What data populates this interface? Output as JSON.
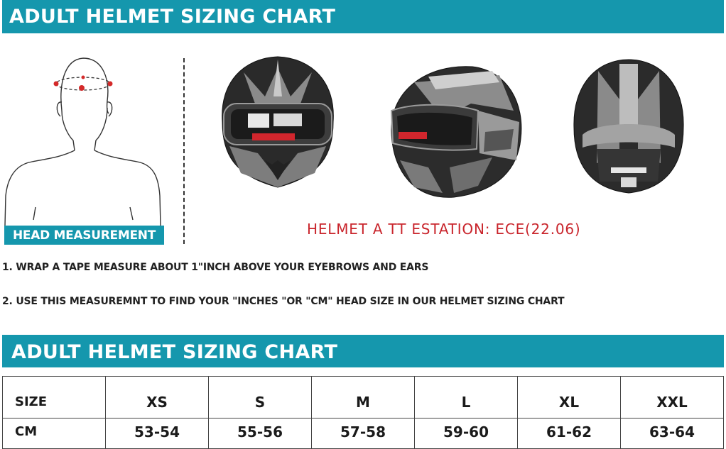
{
  "header": {
    "title": "ADULT HELMET SIZING CHART"
  },
  "figure": {
    "label": "HEAD MEASUREMENT"
  },
  "attestation": "HELMET A TT ESTATION: ECE(22.06)",
  "instructions": [
    "1.  WRAP A TAPE MEASURE ABOUT 1\"INCH  ABOVE YOUR EYEBROWS AND EARS",
    "2.  USE THIS MEASUREMNT TO FIND YOUR \"INCHES  \"OR \"CM\" HEAD SIZE IN OUR HELMET SIZING CHART"
  ],
  "table": {
    "title": "ADULT HELMET SIZING CHART",
    "rows": [
      [
        "SIZE",
        "XS",
        "S",
        "M",
        "L",
        "XL",
        "XXL"
      ],
      [
        "CM",
        "53-54",
        "55-56",
        "57-58",
        "59-60",
        "61-62",
        "63-64"
      ]
    ]
  },
  "colors": {
    "accent": "#1597ad",
    "attestation": "#c9252c",
    "marker": "#d42a2a"
  },
  "icons": [
    "head-outline-icon",
    "helmet-front-icon",
    "helmet-side-icon",
    "helmet-rear-icon"
  ]
}
